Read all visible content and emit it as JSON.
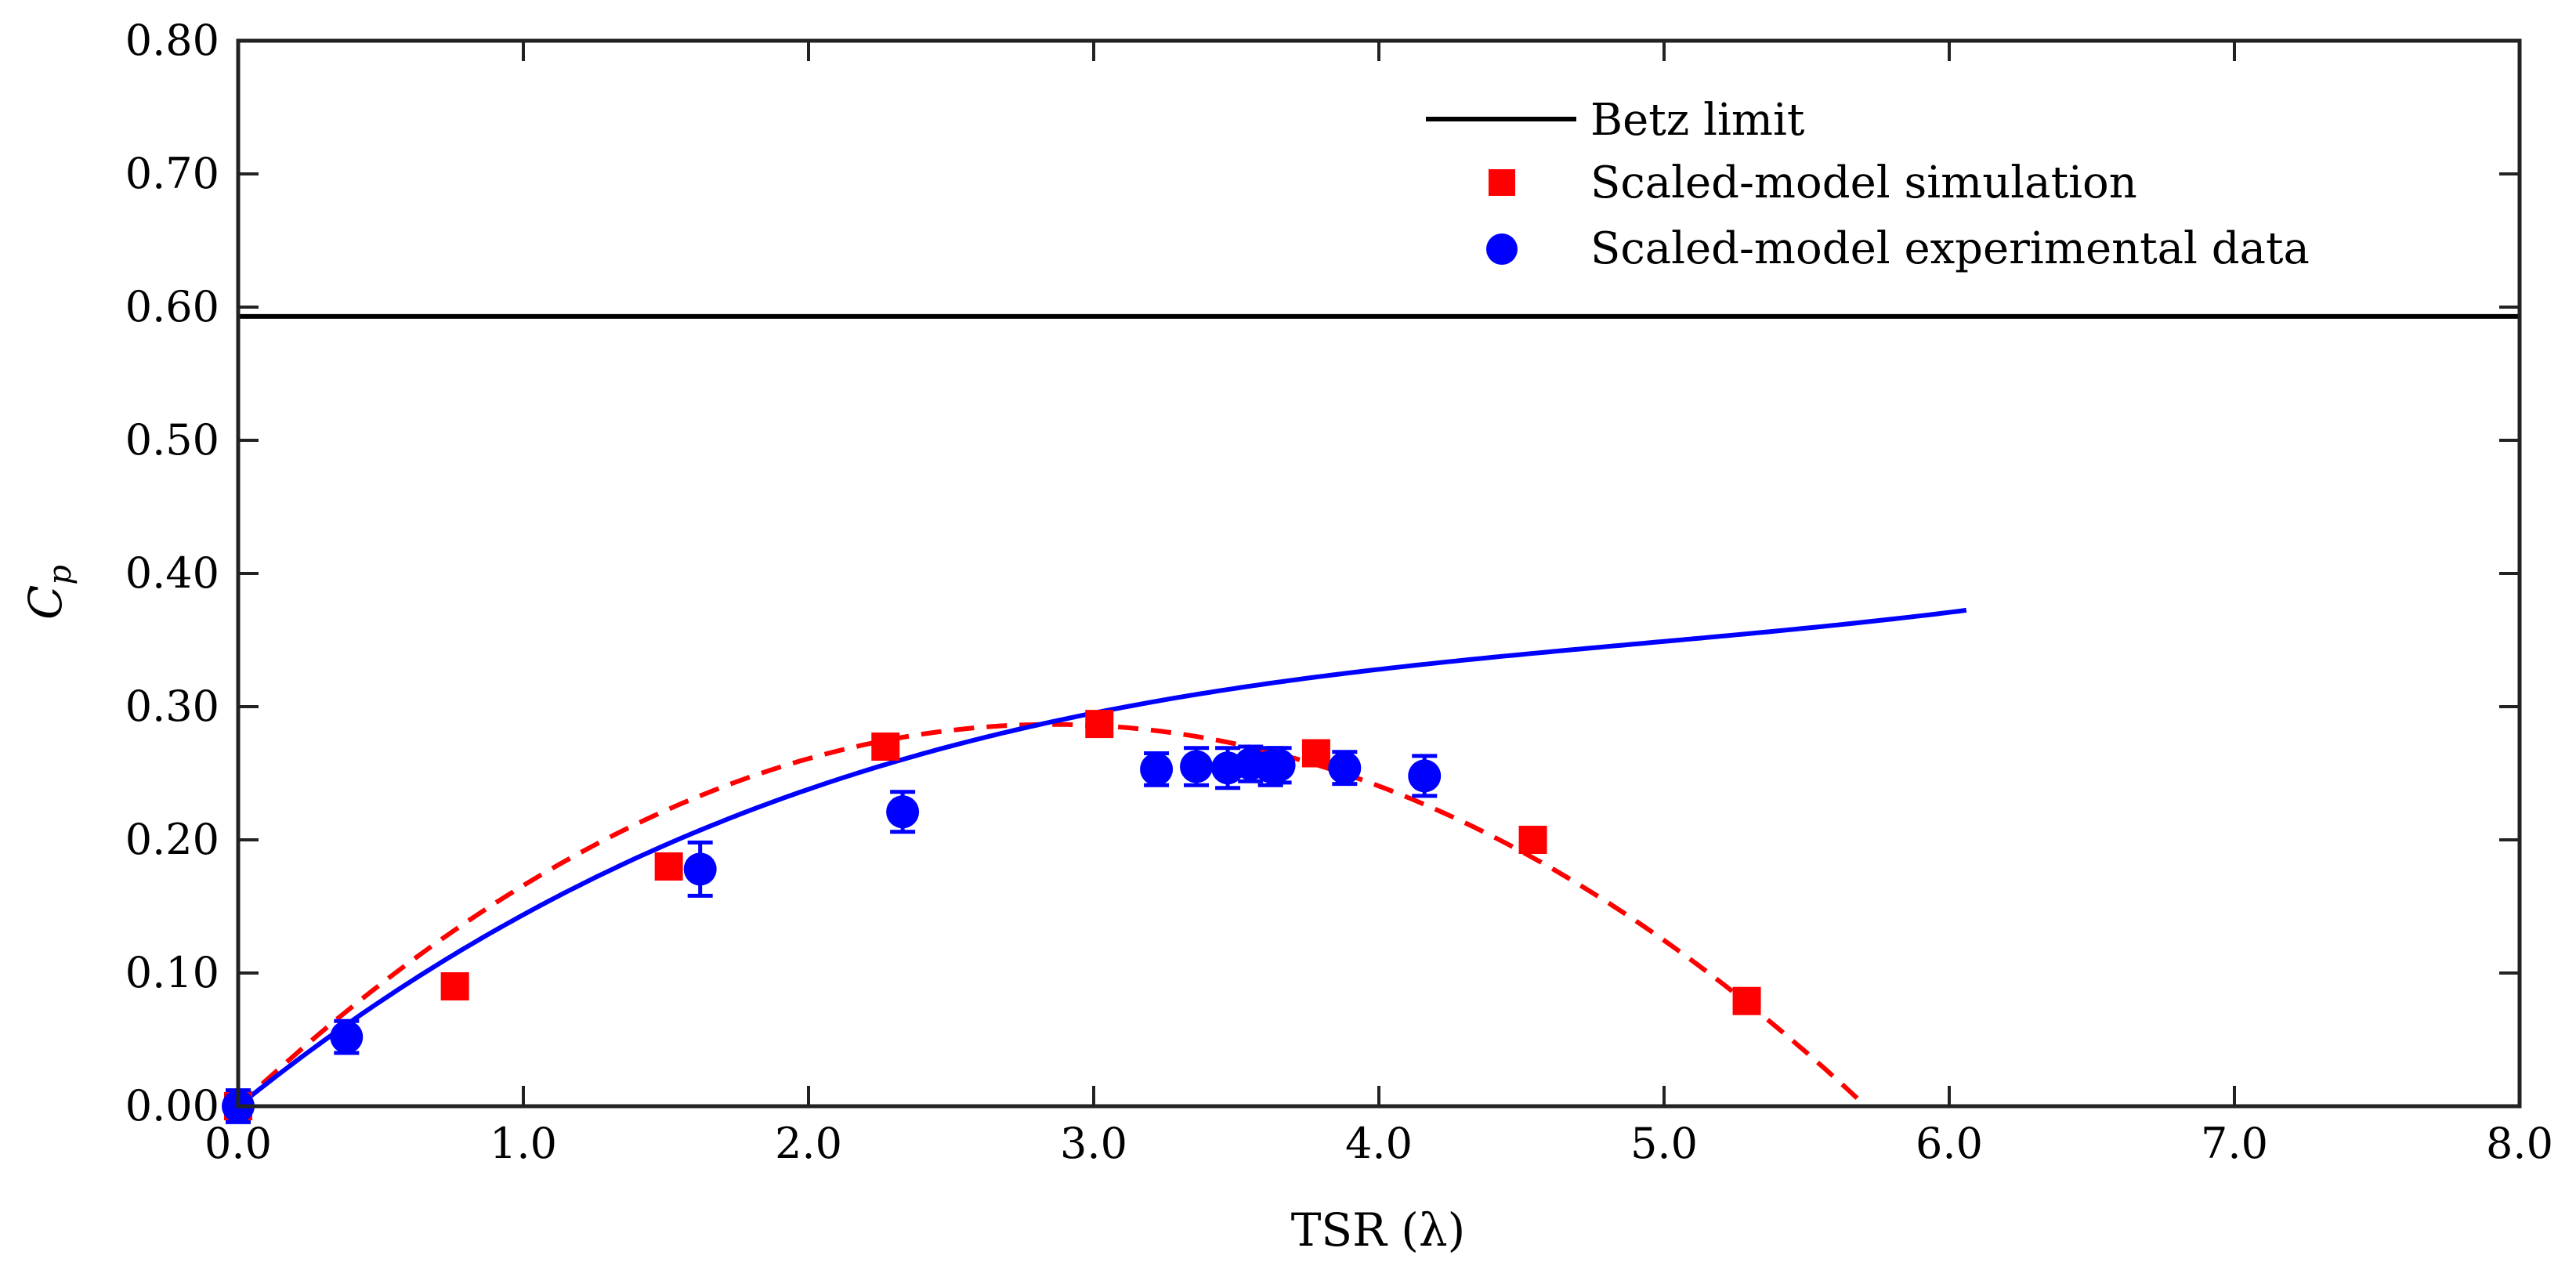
{
  "chart_data": {
    "type": "scatter",
    "title": "",
    "xlabel": "TSR (λ)",
    "ylabel_main": "C",
    "ylabel_sub": "p",
    "xlim": [
      0,
      8
    ],
    "ylim": [
      0,
      0.8
    ],
    "xticks": [
      0,
      1,
      2,
      3,
      4,
      5,
      6,
      7,
      8
    ],
    "xtick_labels": [
      "0.0",
      "1.0",
      "2.0",
      "3.0",
      "4.0",
      "5.0",
      "6.0",
      "7.0",
      "8.0"
    ],
    "yticks": [
      0,
      0.1,
      0.2,
      0.3,
      0.4,
      0.5,
      0.6,
      0.7,
      0.8
    ],
    "ytick_labels": [
      "0.00",
      "0.10",
      "0.20",
      "0.30",
      "0.40",
      "0.50",
      "0.60",
      "0.70",
      "0.80"
    ],
    "grid": false,
    "legend_position": "top-right",
    "betz_limit": {
      "name": "Betz limit",
      "value": 0.593,
      "color": "#000000"
    },
    "simulation": {
      "name": "Scaled-model simulation",
      "color": "#ff0000",
      "x": [
        0.0,
        0.76,
        1.51,
        2.27,
        3.02,
        3.78,
        4.54,
        5.29
      ],
      "y": [
        0.0,
        0.09,
        0.18,
        0.27,
        0.287,
        0.265,
        0.2,
        0.079
      ],
      "fit": {
        "style": "dashed",
        "coeffs": [
          -0.0352,
          0.2009,
          0.0
        ],
        "x_end": 5.71
      }
    },
    "experimental": {
      "name": "Scaled-model experimental data",
      "color": "#0000ff",
      "x": [
        0.0,
        0.38,
        1.62,
        2.33,
        3.22,
        3.36,
        3.47,
        3.55,
        3.62,
        3.65,
        3.88,
        4.16
      ],
      "y": [
        0.0,
        0.052,
        0.178,
        0.221,
        0.253,
        0.255,
        0.254,
        0.257,
        0.255,
        0.256,
        0.254,
        0.248
      ],
      "err": [
        0.012,
        0.012,
        0.02,
        0.015,
        0.012,
        0.014,
        0.015,
        0.013,
        0.014,
        0.013,
        0.012,
        0.015
      ],
      "fit": {
        "style": "solid",
        "coeffs": [
          0.0021,
          -0.0311,
          0.1728,
          0.0
        ],
        "x_end": 6.06
      }
    }
  }
}
